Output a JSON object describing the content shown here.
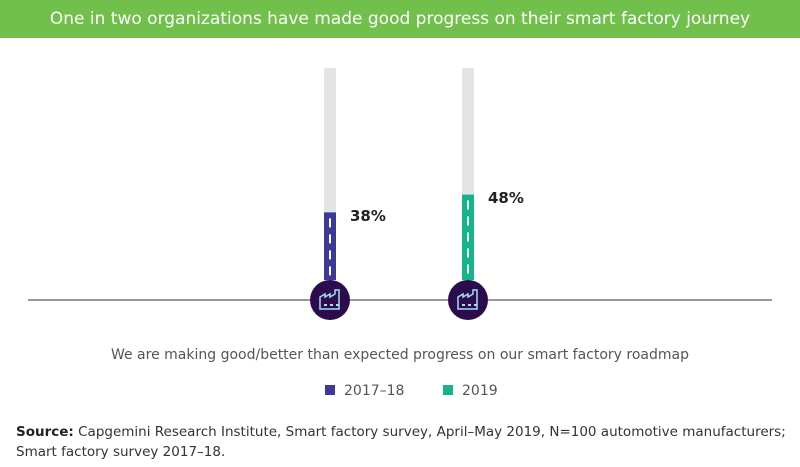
{
  "chart_data": {
    "type": "bar",
    "title": "One in two organizations have made good progress on their smart factory journey",
    "subtitle": "We are making good/better than expected progress on our smart factory roadmap",
    "categories": [
      "2017–18",
      "2019"
    ],
    "values": [
      38,
      48
    ],
    "value_labels": [
      "38%",
      "48%"
    ],
    "colors": [
      "#3d3a97",
      "#14b38b"
    ],
    "source": {
      "label": "Source:",
      "text": "Capgemini Research Institute, Smart factory survey, April–May 2019, N=100 automotive manufacturers; Smart factory survey 2017–18."
    }
  }
}
